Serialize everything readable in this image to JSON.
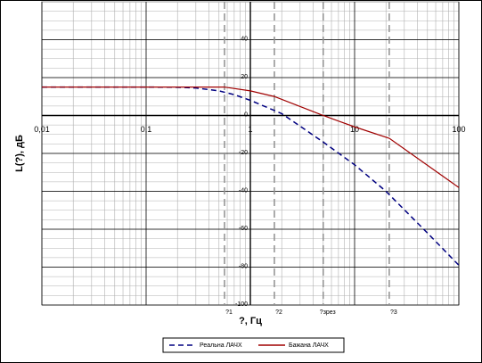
{
  "chart_data": {
    "type": "line",
    "y_label": "L(?), дБ",
    "x_label": "?, Гц",
    "log_x": true,
    "grid": true,
    "minor_grid": true,
    "xlim": [
      0.01,
      100
    ],
    "ylim": [
      -100,
      60
    ],
    "xticks": [
      {
        "value": 0.01,
        "label": "0,01"
      },
      {
        "value": 0.1,
        "label": "0,1"
      },
      1,
      10,
      100
    ],
    "yticks": [
      -100,
      -80,
      -60,
      -40,
      -20,
      0,
      20,
      40
    ],
    "markers": [
      {
        "label": "?1",
        "x": 0.565
      },
      {
        "label": "?2",
        "x": 1.7
      },
      {
        "label": "?зрез",
        "x": 5
      },
      {
        "label": "?3",
        "x": 21.5
      }
    ],
    "legend": "bottom",
    "series": [
      {
        "name": "Реальна ЛАЧХ",
        "color": "#000080",
        "dash": true,
        "x": [
          0.01,
          0.1,
          0.2,
          0.3,
          0.5,
          0.7,
          1,
          2,
          5,
          10,
          20,
          50,
          100
        ],
        "values": [
          15,
          15,
          14.9,
          14.5,
          13,
          11,
          8,
          1,
          -14,
          -26,
          -40,
          -62,
          -79
        ]
      },
      {
        "name": "Бажана ЛАЧХ",
        "color": "#a00000",
        "dash": false,
        "x": [
          0.01,
          0.1,
          0.565,
          1,
          1.7,
          5,
          10,
          21.5,
          100
        ],
        "values": [
          15,
          15,
          15,
          13,
          10,
          0,
          -6,
          -12,
          -38
        ]
      }
    ]
  }
}
